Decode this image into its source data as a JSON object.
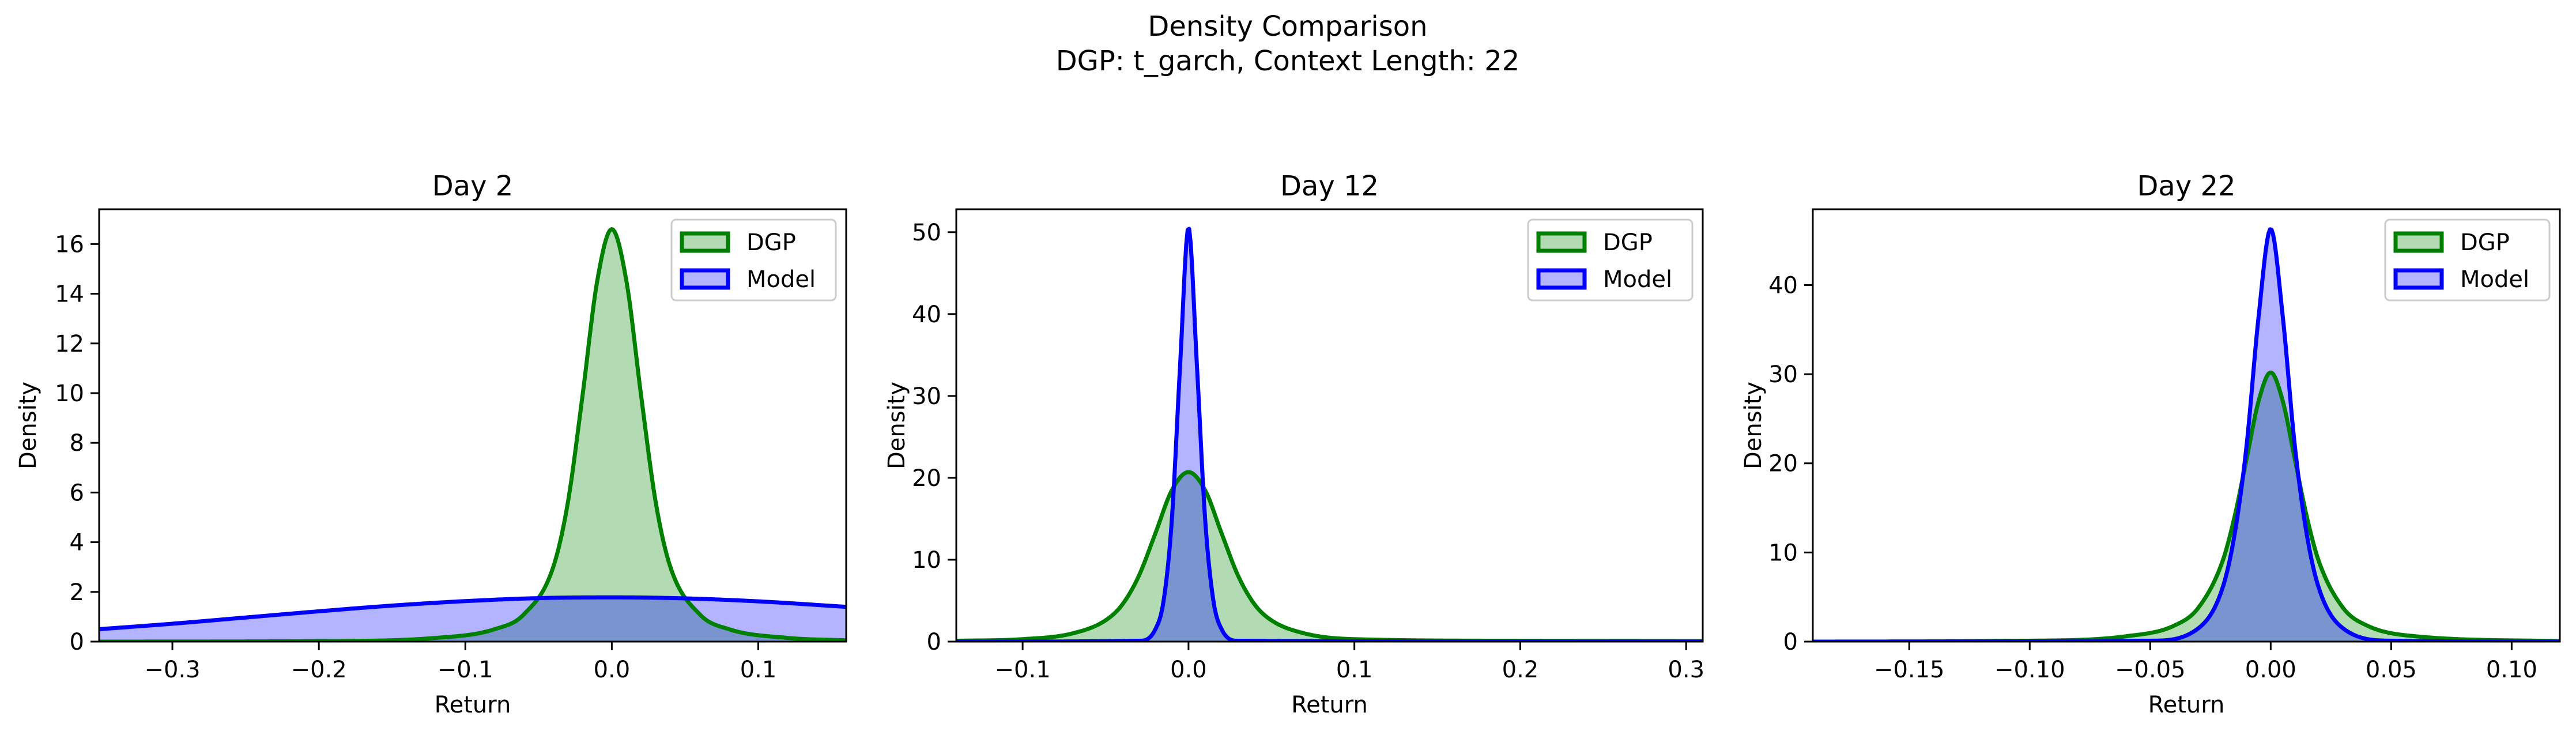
{
  "figure": {
    "suptitle_line1": "Density Comparison",
    "suptitle_line2": "DGP: t_garch, Context Length: 22"
  },
  "colors": {
    "dgp_line": "#008000",
    "dgp_fill": "#b3dbb3",
    "model_line": "#0000ff",
    "model_fill": "#b3b3ff",
    "overlap_fill": "#7a94cf"
  },
  "chart_data": [
    {
      "type": "area",
      "title": "Day 2",
      "xlabel": "Return",
      "ylabel": "Density",
      "xlim": [
        -0.35,
        0.16
      ],
      "ylim": [
        0,
        17.4
      ],
      "xticks": [
        -0.3,
        -0.2,
        -0.1,
        0.0,
        0.1
      ],
      "xtick_labels": [
        "−0.3",
        "−0.2",
        "−0.1",
        "0.0",
        "0.1"
      ],
      "yticks": [
        0,
        2,
        4,
        6,
        8,
        10,
        12,
        14,
        16
      ],
      "ytick_labels": [
        "0",
        "2",
        "4",
        "6",
        "8",
        "10",
        "12",
        "14",
        "16"
      ],
      "legend": {
        "position": "top-right",
        "entries": [
          "DGP",
          "Model"
        ]
      },
      "series": [
        {
          "name": "DGP",
          "x": [
            -0.35,
            -0.2,
            -0.12,
            -0.08,
            -0.06,
            -0.04,
            -0.03,
            -0.02,
            -0.01,
            0.0,
            0.01,
            0.02,
            0.03,
            0.04,
            0.06,
            0.08,
            0.12,
            0.16
          ],
          "values": [
            0.0,
            0.02,
            0.15,
            0.5,
            1.1,
            3.0,
            5.6,
            9.9,
            14.5,
            16.6,
            14.5,
            9.9,
            5.6,
            3.0,
            1.1,
            0.5,
            0.15,
            0.05
          ]
        },
        {
          "name": "Model",
          "x": [
            -0.35,
            -0.3,
            -0.25,
            -0.2,
            -0.15,
            -0.1,
            -0.05,
            0.0,
            0.05,
            0.1,
            0.16
          ],
          "values": [
            0.5,
            0.72,
            0.97,
            1.22,
            1.45,
            1.63,
            1.75,
            1.78,
            1.74,
            1.62,
            1.4
          ]
        }
      ]
    },
    {
      "type": "area",
      "title": "Day 12",
      "xlabel": "Return",
      "ylabel": "Density",
      "xlim": [
        -0.14,
        0.31
      ],
      "ylim": [
        0,
        52.8
      ],
      "xticks": [
        -0.1,
        0.0,
        0.1,
        0.2,
        0.3
      ],
      "xtick_labels": [
        "−0.1",
        "0.0",
        "0.1",
        "0.2",
        "0.3"
      ],
      "yticks": [
        0,
        10,
        20,
        30,
        40,
        50
      ],
      "ytick_labels": [
        "0",
        "10",
        "20",
        "30",
        "40",
        "50"
      ],
      "legend": {
        "position": "top-right",
        "entries": [
          "DGP",
          "Model"
        ]
      },
      "series": [
        {
          "name": "DGP",
          "x": [
            -0.14,
            -0.1,
            -0.07,
            -0.05,
            -0.04,
            -0.03,
            -0.02,
            -0.01,
            0.0,
            0.01,
            0.02,
            0.03,
            0.04,
            0.05,
            0.07,
            0.1,
            0.2,
            0.31
          ],
          "values": [
            0.1,
            0.3,
            1.0,
            2.6,
            4.5,
            8.0,
            13.2,
            18.5,
            20.7,
            18.5,
            13.2,
            8.0,
            4.5,
            2.6,
            1.0,
            0.3,
            0.1,
            0.05
          ]
        },
        {
          "name": "Model",
          "x": [
            -0.14,
            -0.03,
            -0.02,
            -0.015,
            -0.01,
            -0.005,
            0.0,
            0.005,
            0.01,
            0.015,
            0.02,
            0.03,
            0.31
          ],
          "values": [
            0.0,
            0.1,
            1.5,
            5.0,
            15.0,
            34.0,
            50.6,
            34.0,
            15.0,
            5.0,
            1.5,
            0.1,
            0.0
          ]
        }
      ]
    },
    {
      "type": "area",
      "title": "Day 22",
      "xlabel": "Return",
      "ylabel": "Density",
      "xlim": [
        -0.19,
        0.12
      ],
      "ylim": [
        0,
        48.5
      ],
      "xticks": [
        -0.15,
        -0.1,
        -0.05,
        0.0,
        0.05,
        0.1
      ],
      "xtick_labels": [
        "−0.15",
        "−0.10",
        "−0.05",
        "0.00",
        "0.05",
        "0.10"
      ],
      "yticks": [
        0,
        10,
        20,
        30,
        40
      ],
      "ytick_labels": [
        "0",
        "10",
        "20",
        "30",
        "40"
      ],
      "legend": {
        "position": "top-right",
        "entries": [
          "DGP",
          "Model"
        ]
      },
      "series": [
        {
          "name": "DGP",
          "x": [
            -0.19,
            -0.1,
            -0.06,
            -0.04,
            -0.03,
            -0.02,
            -0.015,
            -0.01,
            -0.005,
            0.0,
            0.005,
            0.01,
            0.015,
            0.02,
            0.03,
            0.04,
            0.06,
            0.12
          ],
          "values": [
            0.0,
            0.1,
            0.6,
            1.8,
            3.8,
            9.0,
            14.0,
            20.5,
            27.0,
            30.2,
            27.0,
            20.5,
            14.0,
            9.0,
            3.8,
            1.8,
            0.6,
            0.05
          ]
        },
        {
          "name": "Model",
          "x": [
            -0.19,
            -0.05,
            -0.03,
            -0.02,
            -0.015,
            -0.01,
            -0.005,
            0.0,
            0.005,
            0.01,
            0.015,
            0.02,
            0.03,
            0.05,
            0.12
          ],
          "values": [
            0.0,
            0.1,
            1.5,
            6.0,
            12.0,
            22.0,
            36.5,
            46.3,
            36.5,
            22.0,
            12.0,
            6.0,
            1.5,
            0.1,
            0.0
          ]
        }
      ]
    }
  ]
}
